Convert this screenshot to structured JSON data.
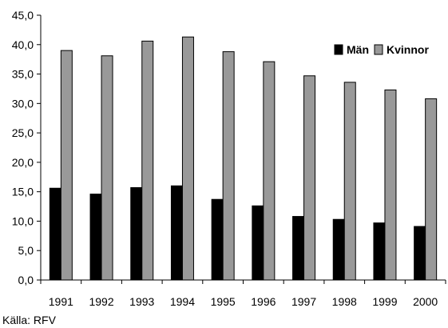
{
  "chart_data": {
    "type": "bar",
    "categories": [
      "1991",
      "1992",
      "1993",
      "1994",
      "1995",
      "1996",
      "1997",
      "1998",
      "1999",
      "2000"
    ],
    "series": [
      {
        "name": "Män",
        "color": "#000000",
        "values": [
          15.6,
          14.6,
          15.7,
          16.0,
          13.7,
          12.6,
          10.8,
          10.3,
          9.7,
          9.1
        ]
      },
      {
        "name": "Kvinnor",
        "color": "#999999",
        "values": [
          39.0,
          38.1,
          40.6,
          41.3,
          38.8,
          37.1,
          34.7,
          33.6,
          32.3,
          30.8
        ]
      }
    ],
    "ylim": [
      0,
      45
    ],
    "yticks": [
      "0,0",
      "5,0",
      "10,0",
      "15,0",
      "20,0",
      "25,0",
      "30,0",
      "35,0",
      "40,0",
      "45,0"
    ],
    "grid": false,
    "legend_position": "top-right",
    "source": "Källa: RFV"
  }
}
